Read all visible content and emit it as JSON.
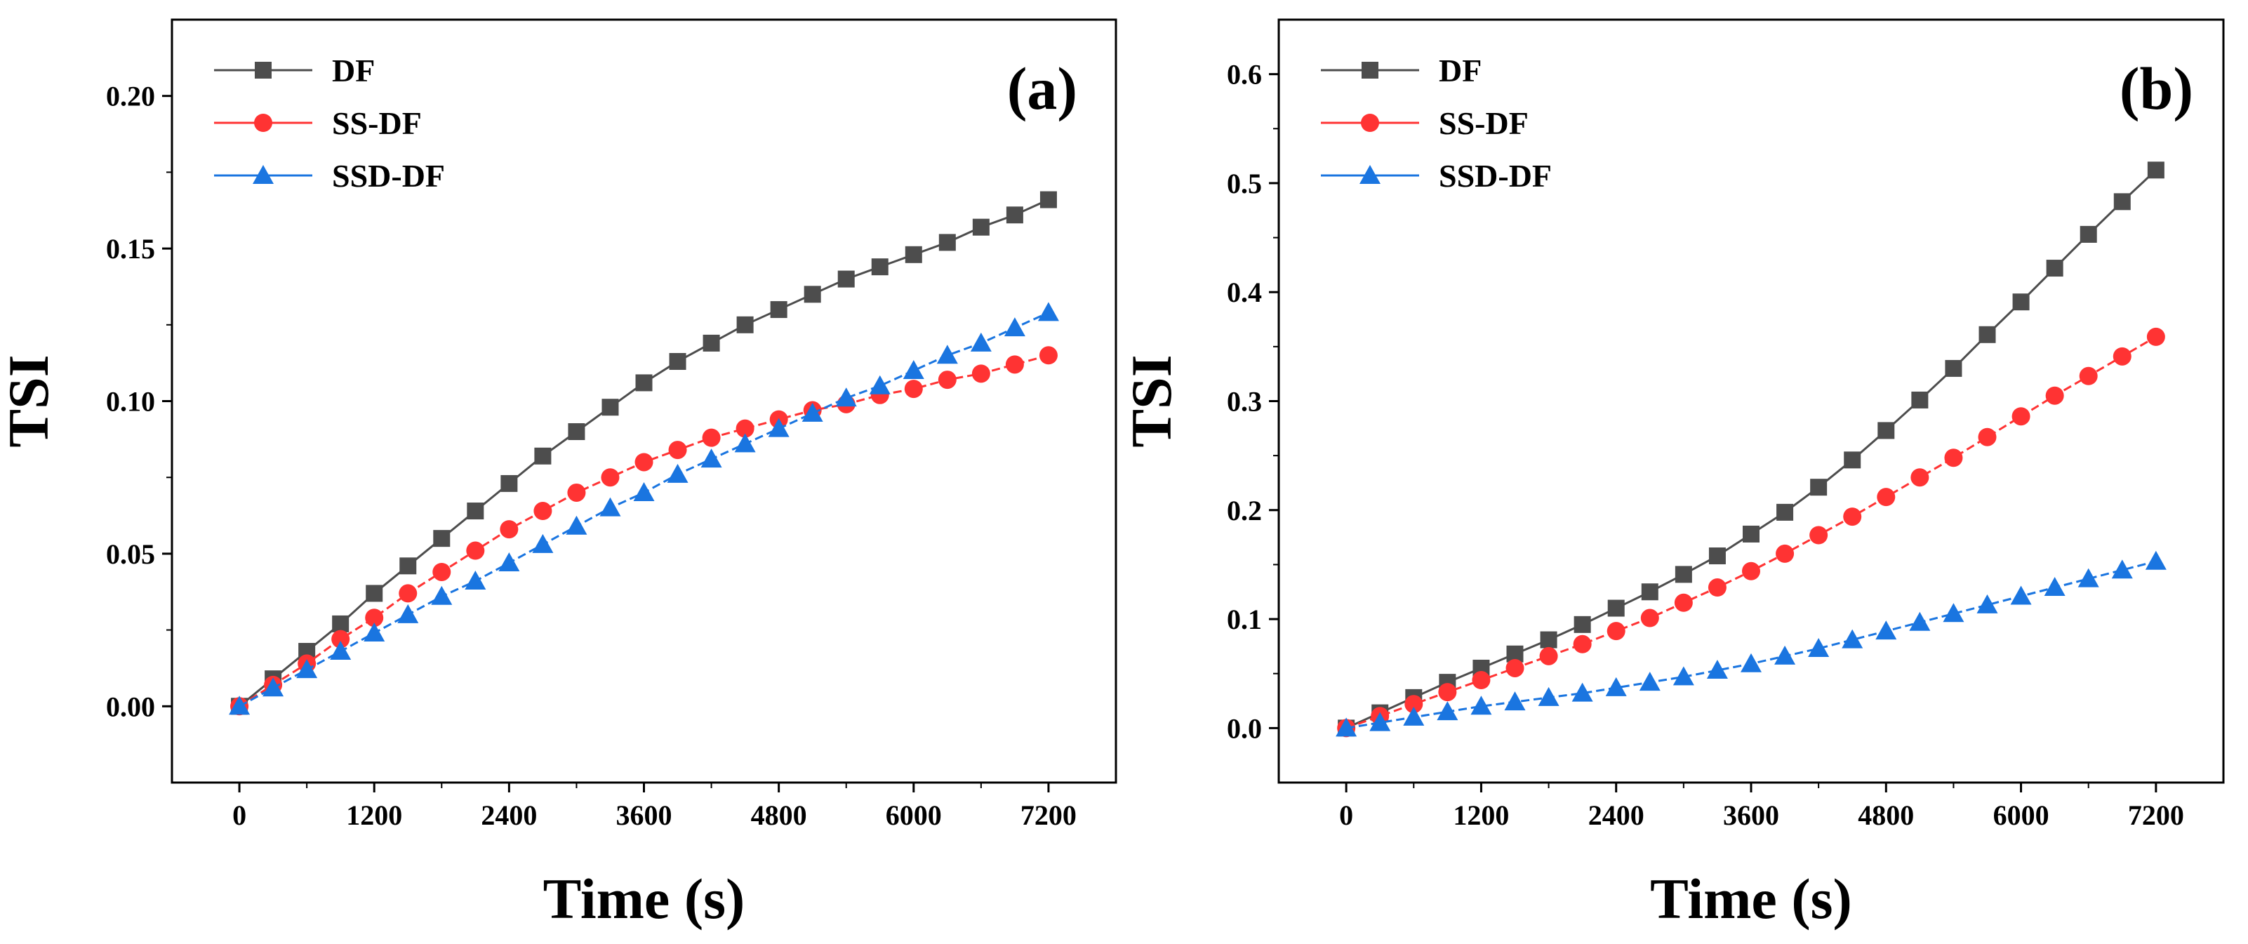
{
  "chart_data": [
    {
      "type": "line",
      "panel_label": "(a)",
      "xlabel": "Time (s)",
      "ylabel": "TSI",
      "xlim": [
        -600,
        7800
      ],
      "ylim": [
        -0.025,
        0.225
      ],
      "xticks": [
        0,
        1200,
        2400,
        3600,
        4800,
        6000,
        7200
      ],
      "xtick_labels": [
        "0",
        "1200",
        "2400",
        "3600",
        "4800",
        "6000",
        "7200"
      ],
      "yticks": [
        0.0,
        0.05,
        0.1,
        0.15,
        0.2
      ],
      "ytick_labels": [
        "0.00",
        "0.05",
        "0.10",
        "0.15",
        "0.20"
      ],
      "legend_position": "top-left",
      "x": [
        0,
        300,
        600,
        900,
        1200,
        1500,
        1800,
        2100,
        2400,
        2700,
        3000,
        3300,
        3600,
        3900,
        4200,
        4500,
        4800,
        5100,
        5400,
        5700,
        6000,
        6300,
        6600,
        6900,
        7200
      ],
      "series": [
        {
          "name": "DF",
          "color": "#4d4d4d",
          "marker": "square",
          "dashed": false,
          "values": [
            0,
            0.009,
            0.018,
            0.027,
            0.037,
            0.046,
            0.055,
            0.064,
            0.073,
            0.082,
            0.09,
            0.098,
            0.106,
            0.113,
            0.119,
            0.125,
            0.13,
            0.135,
            0.14,
            0.144,
            0.148,
            0.152,
            0.157,
            0.161,
            0.166
          ]
        },
        {
          "name": "SS-DF",
          "color": "#ff3333",
          "marker": "circle",
          "dashed": true,
          "values": [
            0,
            0.007,
            0.014,
            0.022,
            0.029,
            0.037,
            0.044,
            0.051,
            0.058,
            0.064,
            0.07,
            0.075,
            0.08,
            0.084,
            0.088,
            0.091,
            0.094,
            0.097,
            0.099,
            0.102,
            0.104,
            0.107,
            0.109,
            0.112,
            0.115
          ]
        },
        {
          "name": "SSD-DF",
          "color": "#1a75e0",
          "marker": "triangle",
          "dashed": true,
          "values": [
            0,
            0.006,
            0.012,
            0.018,
            0.024,
            0.03,
            0.036,
            0.041,
            0.047,
            0.053,
            0.059,
            0.065,
            0.07,
            0.076,
            0.081,
            0.086,
            0.091,
            0.096,
            0.101,
            0.105,
            0.11,
            0.115,
            0.119,
            0.124,
            0.129
          ]
        }
      ]
    },
    {
      "type": "line",
      "panel_label": "(b)",
      "xlabel": "Time (s)",
      "ylabel": "TSI",
      "xlim": [
        -600,
        7800
      ],
      "ylim": [
        -0.05,
        0.65
      ],
      "xticks": [
        0,
        1200,
        2400,
        3600,
        4800,
        6000,
        7200
      ],
      "xtick_labels": [
        "0",
        "1200",
        "2400",
        "3600",
        "4800",
        "6000",
        "7200"
      ],
      "yticks": [
        0.0,
        0.1,
        0.2,
        0.3,
        0.4,
        0.5,
        0.6
      ],
      "ytick_labels": [
        "0.0",
        "0.1",
        "0.2",
        "0.3",
        "0.4",
        "0.5",
        "0.6"
      ],
      "legend_position": "top-left",
      "x": [
        0,
        300,
        600,
        900,
        1200,
        1500,
        1800,
        2100,
        2400,
        2700,
        3000,
        3300,
        3600,
        3900,
        4200,
        4500,
        4800,
        5100,
        5400,
        5700,
        6000,
        6300,
        6600,
        6900,
        7200
      ],
      "series": [
        {
          "name": "DF",
          "color": "#4d4d4d",
          "marker": "square",
          "dashed": false,
          "values": [
            0,
            0.014,
            0.028,
            0.042,
            0.055,
            0.068,
            0.081,
            0.095,
            0.11,
            0.125,
            0.141,
            0.158,
            0.178,
            0.198,
            0.221,
            0.246,
            0.273,
            0.301,
            0.33,
            0.361,
            0.391,
            0.422,
            0.453,
            0.483,
            0.512
          ]
        },
        {
          "name": "SS-DF",
          "color": "#ff3333",
          "marker": "circle",
          "dashed": true,
          "values": [
            0,
            0.011,
            0.022,
            0.033,
            0.044,
            0.055,
            0.066,
            0.077,
            0.089,
            0.101,
            0.115,
            0.129,
            0.144,
            0.16,
            0.177,
            0.194,
            0.212,
            0.23,
            0.248,
            0.267,
            0.286,
            0.305,
            0.323,
            0.341,
            0.359
          ]
        },
        {
          "name": "SSD-DF",
          "color": "#1a75e0",
          "marker": "triangle",
          "dashed": true,
          "values": [
            0,
            0.005,
            0.01,
            0.015,
            0.02,
            0.024,
            0.028,
            0.032,
            0.037,
            0.042,
            0.047,
            0.053,
            0.059,
            0.066,
            0.073,
            0.081,
            0.089,
            0.097,
            0.105,
            0.113,
            0.121,
            0.129,
            0.137,
            0.145,
            0.153
          ]
        }
      ]
    }
  ]
}
